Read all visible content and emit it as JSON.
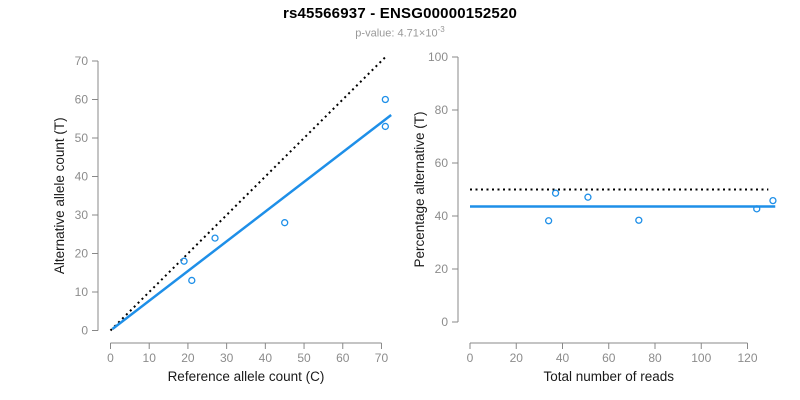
{
  "header": {
    "title": "rs45566937 - ENSG00000152520",
    "pvalue_prefix": "p-value: 4.71",
    "pvalue_times": "×10",
    "pvalue_exponent": "-3"
  },
  "colors": {
    "accent_blue": "#1E8FE8",
    "dotted_black": "#000000",
    "axis_gray": "#888888",
    "tick_text_gray": "#8C8C8C",
    "axis_title_black": "#1A1A1A",
    "subtitle_gray": "#999999",
    "title_black": "#000000"
  },
  "chart_data": [
    {
      "name": "allele-count-plot",
      "type": "scatter",
      "xlabel": "Reference allele count (C)",
      "ylabel": "Alternative allele count (T)",
      "xlim": [
        0,
        70
      ],
      "ylim": [
        0,
        70
      ],
      "xticks": [
        0,
        10,
        20,
        30,
        40,
        50,
        60,
        70
      ],
      "yticks": [
        0,
        10,
        20,
        30,
        40,
        50,
        60,
        70
      ],
      "grid": false,
      "points": [
        [
          19,
          18
        ],
        [
          21,
          13
        ],
        [
          27,
          24
        ],
        [
          45,
          28
        ],
        [
          71,
          53
        ],
        [
          71,
          60
        ]
      ],
      "lines": [
        {
          "name": "identity-dotted-line",
          "style": "dotted",
          "color": "#000000",
          "slope": 1,
          "intercept": 0,
          "x_range": [
            0,
            71.5
          ]
        },
        {
          "name": "fitted-ratio-line",
          "style": "solid",
          "color": "#1E8FE8",
          "slope": 0.772,
          "intercept": 0,
          "x_range": [
            0.5,
            72.5
          ]
        }
      ]
    },
    {
      "name": "percentage-reads-plot",
      "type": "scatter",
      "xlabel": "Total number of reads",
      "ylabel": "Percentage alternative (T)",
      "xlim": [
        0,
        132
      ],
      "ylim": [
        0,
        100
      ],
      "xticks": [
        0,
        20,
        40,
        60,
        80,
        100,
        120
      ],
      "yticks": [
        0,
        20,
        40,
        60,
        80,
        100
      ],
      "grid": false,
      "points": [
        [
          34,
          38.2
        ],
        [
          37,
          48.6
        ],
        [
          51,
          47.1
        ],
        [
          73,
          38.4
        ],
        [
          124,
          42.7
        ],
        [
          131,
          45.8
        ]
      ],
      "lines": [
        {
          "name": "expected-50pct-line",
          "style": "dotted",
          "color": "#000000",
          "slope": 0,
          "intercept": 50,
          "x_range": [
            0,
            129
          ]
        },
        {
          "name": "mean-percentage-line",
          "style": "solid",
          "color": "#1E8FE8",
          "slope": 0,
          "intercept": 43.6,
          "x_range": [
            0,
            132
          ]
        }
      ]
    }
  ]
}
